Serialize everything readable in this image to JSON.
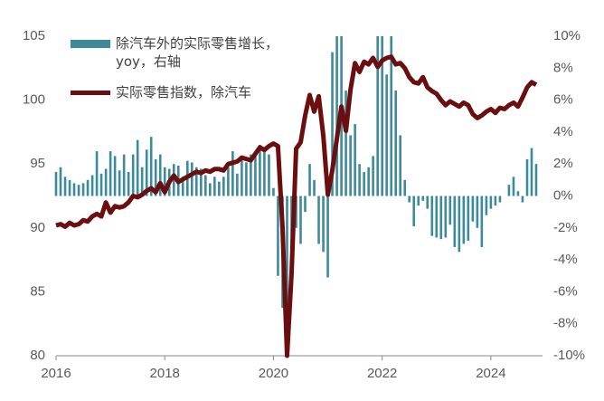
{
  "chart_data": {
    "type": "combo",
    "x": [
      2016,
      2016.083,
      2016.167,
      2016.25,
      2016.333,
      2016.417,
      2016.5,
      2016.583,
      2016.667,
      2016.75,
      2016.833,
      2016.917,
      2017,
      2017.083,
      2017.167,
      2017.25,
      2017.333,
      2017.417,
      2017.5,
      2017.583,
      2017.667,
      2017.75,
      2017.833,
      2017.917,
      2018,
      2018.083,
      2018.167,
      2018.25,
      2018.333,
      2018.417,
      2018.5,
      2018.583,
      2018.667,
      2018.75,
      2018.833,
      2018.917,
      2019,
      2019.083,
      2019.167,
      2019.25,
      2019.333,
      2019.417,
      2019.5,
      2019.583,
      2019.667,
      2019.75,
      2019.833,
      2019.917,
      2020,
      2020.083,
      2020.167,
      2020.25,
      2020.333,
      2020.417,
      2020.5,
      2020.583,
      2020.667,
      2020.75,
      2020.833,
      2020.917,
      2021,
      2021.083,
      2021.167,
      2021.25,
      2021.333,
      2021.417,
      2021.5,
      2021.583,
      2021.667,
      2021.75,
      2021.833,
      2021.917,
      2022,
      2022.083,
      2022.167,
      2022.25,
      2022.333,
      2022.417,
      2022.5,
      2022.583,
      2022.667,
      2022.75,
      2022.833,
      2022.917,
      2023,
      2023.083,
      2023.167,
      2023.25,
      2023.333,
      2023.417,
      2023.5,
      2023.583,
      2023.667,
      2023.75,
      2023.833,
      2023.917,
      2024,
      2024.083,
      2024.167,
      2024.25,
      2024.333,
      2024.417,
      2024.5,
      2024.583,
      2024.667,
      2024.75,
      2024.833
    ],
    "series": [
      {
        "name": "除汽车外的实际零售增长，yoy，右轴",
        "type": "bar",
        "axis": "y2",
        "color": "#3d8a9b",
        "values": [
          1.5,
          1.8,
          1.2,
          1.0,
          0.8,
          0.7,
          0.8,
          1.0,
          1.3,
          2.8,
          1.4,
          1.7,
          2.8,
          2.5,
          1.6,
          2.6,
          1.5,
          2.6,
          3.5,
          1.8,
          2.9,
          3.7,
          2.3,
          2.6,
          1.8,
          1.7,
          2.0,
          1.9,
          1.2,
          2.2,
          2.1,
          1.8,
          1.7,
          1.3,
          0.8,
          1.2,
          0.9,
          1.2,
          1.8,
          2.8,
          1.4,
          2.5,
          2.1,
          2.6,
          2.7,
          3.2,
          2.8,
          2.6,
          0.5,
          -5.0,
          -7.0,
          -9.0,
          -6.0,
          -2.0,
          -3.0,
          -1.0,
          2.0,
          1.0,
          -3.0,
          -3.5,
          -5.1,
          9.0,
          10.0,
          10.0,
          6.6,
          3.8,
          4.5,
          2.0,
          1.5,
          1.8,
          2.5,
          10.0,
          10.0,
          7.6,
          10.0,
          6.6,
          3.8,
          1.0,
          -0.4,
          -1.9,
          -0.6,
          -0.3,
          -0.8,
          -2.5,
          -2.6,
          -2.7,
          -2.6,
          -1.8,
          -3.2,
          -3.5,
          -3.0,
          -2.8,
          -1.6,
          -2.0,
          -3.2,
          -1.2,
          -0.8,
          -0.6,
          -0.4,
          0.0,
          0.7,
          1.2,
          0.3,
          -0.4,
          2.3,
          3.0,
          2.0
        ]
      },
      {
        "name": "实际零售指数，除汽车",
        "type": "line",
        "axis": "y",
        "color": "#6b0e10",
        "values": [
          90.2,
          90.3,
          90.1,
          90.4,
          90.2,
          90.3,
          90.6,
          90.5,
          90.9,
          91.1,
          90.9,
          92.0,
          91.2,
          91.7,
          91.6,
          91.7,
          92.0,
          92.5,
          92.4,
          92.6,
          92.9,
          93.1,
          92.8,
          93.5,
          92.8,
          93.6,
          94.1,
          93.6,
          93.8,
          94.0,
          94.2,
          94.4,
          94.3,
          94.5,
          94.4,
          94.6,
          94.6,
          94.5,
          95.0,
          95.1,
          95.2,
          95.5,
          95.4,
          95.3,
          95.8,
          96.3,
          96.1,
          96.4,
          96.6,
          96.4,
          90.0,
          80.0,
          86.5,
          96.2,
          96.7,
          98.8,
          100.4,
          99.1,
          100.3,
          97.2,
          92.6,
          94.5,
          97.0,
          99.5,
          97.6,
          100.8,
          102.9,
          102.2,
          103.0,
          102.8,
          103.3,
          102.6,
          103.1,
          103.3,
          103.4,
          102.8,
          102.9,
          102.5,
          101.8,
          101.4,
          101.3,
          101.8,
          101.0,
          100.7,
          100.5,
          100.0,
          99.6,
          99.9,
          99.7,
          99.5,
          99.8,
          99.6,
          98.9,
          98.6,
          98.8,
          99.1,
          99.3,
          99.0,
          99.4,
          99.3,
          99.6,
          99.8,
          99.5,
          100.2,
          101.0,
          101.4,
          101.2
        ]
      }
    ],
    "xlim": [
      2016,
      2024.95
    ],
    "xticks": [
      2016,
      2018,
      2020,
      2022,
      2024
    ],
    "ylim": [
      80,
      105
    ],
    "yticks": [
      80,
      85,
      90,
      95,
      100,
      105
    ],
    "y2lim": [
      -10,
      10
    ],
    "y2ticks": [
      {
        "value": -10,
        "label": "-10%"
      },
      {
        "value": -8,
        "label": "-8%"
      },
      {
        "value": -6,
        "label": "-6%"
      },
      {
        "value": -4,
        "label": "-4%"
      },
      {
        "value": -2,
        "label": "-2%"
      },
      {
        "value": 0,
        "label": "0%"
      },
      {
        "value": 2,
        "label": "2%"
      },
      {
        "value": 4,
        "label": "4%"
      },
      {
        "value": 6,
        "label": "6%"
      },
      {
        "value": 8,
        "label": "8%"
      },
      {
        "value": 10,
        "label": "10%"
      }
    ],
    "grid": false,
    "legend": "top-left"
  }
}
